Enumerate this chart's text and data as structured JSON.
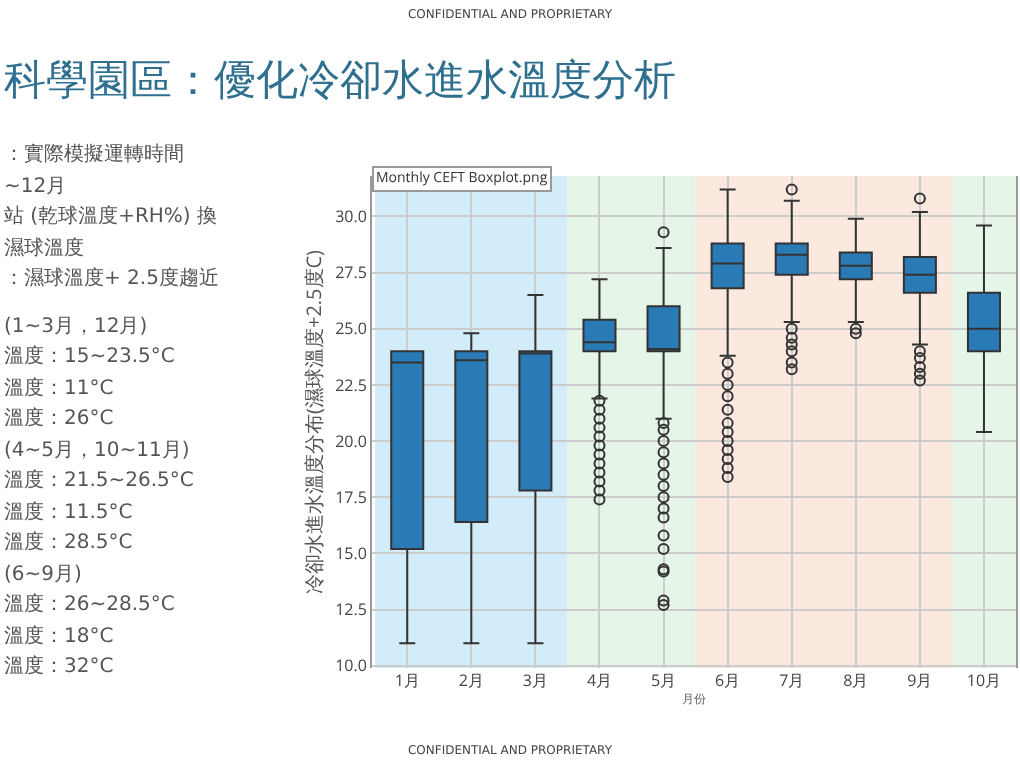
{
  "chart_data": {
    "type": "box",
    "title": "科學園區：優化冷卻水進水溫度分析",
    "xlabel": "月份",
    "ylabel": "冷卻水進水溫度分布(濕球溫度+2.5度C)",
    "categories": [
      "1月",
      "2月",
      "3月",
      "4月",
      "5月",
      "6月",
      "7月",
      "8月",
      "9月",
      "10月"
    ],
    "color": "#2a7ab5",
    "boxes": [
      {
        "low": 11,
        "q1": 15.2,
        "median": 23.5,
        "q3": 24,
        "high": 24
      },
      {
        "low": 11,
        "q1": 16.4,
        "median": 23.6,
        "q3": 24,
        "high": 24.8
      },
      {
        "low": 11,
        "q1": 17.8,
        "median": 23.9,
        "q3": 24,
        "high": 26.5
      },
      {
        "low": 21.9,
        "q1": 24,
        "median": 24.4,
        "q3": 25.4,
        "high": 27.2,
        "outliers": [
          17.4,
          17.8,
          18.2,
          18.6,
          19,
          19.4,
          19.8,
          20.2,
          20.6,
          21,
          21.4,
          21.8
        ]
      },
      {
        "low": 21,
        "q1": 24,
        "median": 24.1,
        "q3": 26,
        "high": 28.6,
        "outliers": [
          12.7,
          12.9,
          14.2,
          14.3,
          15.2,
          15.8,
          16.6,
          17,
          17.5,
          18,
          18.5,
          19,
          19.5,
          20,
          20.5,
          20.8,
          29.3
        ]
      },
      {
        "low": 23.8,
        "q1": 26.8,
        "median": 27.9,
        "q3": 28.8,
        "high": 31.2,
        "outliers": [
          18.4,
          18.8,
          19.2,
          19.6,
          20,
          20.4,
          20.8,
          21.4,
          22,
          22.5,
          23,
          23.5
        ]
      },
      {
        "low": 25.3,
        "q1": 27.4,
        "median": 28.3,
        "q3": 28.8,
        "high": 30.7,
        "outliers": [
          23.2,
          23.5,
          24,
          24.3,
          24.6,
          25,
          31.2
        ]
      },
      {
        "low": 25.3,
        "q1": 27.2,
        "median": 27.8,
        "q3": 28.4,
        "high": 29.9,
        "outliers": [
          24.8,
          25
        ]
      },
      {
        "low": 24.3,
        "q1": 26.6,
        "median": 27.4,
        "q3": 28.2,
        "high": 30.2,
        "outliers": [
          22.7,
          23,
          23.3,
          23.7,
          24,
          30.8
        ]
      },
      {
        "low": 20.4,
        "q1": 24,
        "median": 25,
        "q3": 26.6,
        "high": 29.6
      }
    ],
    "ylim": [
      9.9,
      31.8
    ],
    "yticks": [
      {
        "value": 10,
        "label": "10.0"
      },
      {
        "value": 12.5,
        "label": "12.5"
      },
      {
        "value": 15,
        "label": "15.0"
      },
      {
        "value": 17.5,
        "label": "17.5"
      },
      {
        "value": 20,
        "label": "20.0"
      },
      {
        "value": 22.5,
        "label": "22.5"
      },
      {
        "value": 25,
        "label": "25.0"
      },
      {
        "value": 27.5,
        "label": "27.5"
      },
      {
        "value": 30,
        "label": "30.0"
      }
    ],
    "bands": [
      {
        "axis": "x",
        "from": "1月",
        "to": "3月",
        "color": "#cdeaf8"
      },
      {
        "axis": "x",
        "from": "4月",
        "to": "5月",
        "color": "#e2f4e6"
      },
      {
        "axis": "x",
        "from": "6月",
        "to": "9月",
        "color": "#fbe6dc"
      },
      {
        "axis": "x",
        "from": "10月",
        "to": "10月",
        "color": "#e2f4e6"
      }
    ],
    "grid": true,
    "marker": "circle",
    "annotations": [
      "CONFIDENTIAL AND PROPRIETARY",
      "Monthly CEFT Boxplot.png",
      "：實際模擬運轉時間",
      "~12月",
      "站 (乾球溫度+RH%) 換",
      "濕球溫度",
      "：濕球溫度+ 2.5度趨近",
      "(1~3月，12月)",
      "溫度：15~23.5°C",
      "溫度：11°C",
      "溫度：26°C",
      "(4~5月，10~11月)",
      "溫度：21.5~26.5°C",
      "溫度：11.5°C",
      "溫度：28.5°C",
      "(6~9月)",
      "溫度：26~28.5°C",
      "溫度：18°C",
      "溫度：32°C",
      "CONFIDENTIAL AND PROPRIETARY"
    ]
  }
}
